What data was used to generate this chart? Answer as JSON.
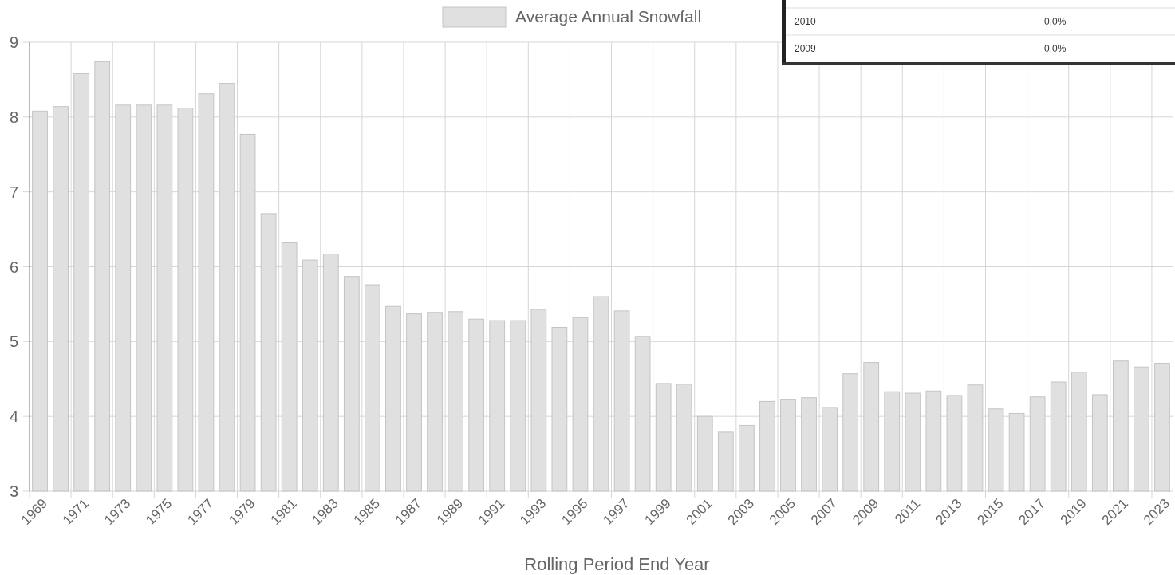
{
  "chart_data": {
    "type": "bar",
    "xlabel": "Rolling Period End Year",
    "categories": [
      "1969",
      null,
      "1971",
      null,
      "1973",
      null,
      "1975",
      null,
      "1977",
      null,
      "1979",
      null,
      "1981",
      null,
      "1983",
      null,
      "1985",
      null,
      "1987",
      null,
      "1989",
      null,
      "1991",
      null,
      "1993",
      null,
      "1995",
      null,
      "1997",
      null,
      "1999",
      null,
      "2001",
      null,
      "2003",
      null,
      "2005",
      null,
      "2007",
      null,
      "2009",
      null,
      "2011",
      null,
      "2013",
      null,
      "2015",
      null,
      "2017",
      null,
      "2019",
      null,
      "2021",
      null,
      "2023"
    ],
    "series": [
      {
        "name": "Average Annual Snowfall",
        "color": "#e0e0e0",
        "values": [
          8.08,
          8.14,
          8.58,
          8.74,
          8.16,
          8.16,
          8.16,
          8.12,
          8.31,
          8.45,
          7.77,
          6.71,
          6.32,
          6.09,
          6.17,
          5.87,
          5.76,
          5.47,
          5.37,
          5.39,
          5.4,
          5.3,
          5.28,
          5.28,
          5.43,
          5.19,
          5.32,
          5.6,
          5.41,
          5.07,
          4.44,
          4.43,
          4.0,
          3.79,
          3.88,
          4.2,
          4.23,
          4.25,
          4.12,
          4.57,
          4.72,
          4.33,
          4.31,
          4.34,
          4.28,
          4.42,
          4.1,
          4.04,
          4.26,
          4.46,
          4.59,
          4.29,
          4.74,
          4.66,
          4.71
        ]
      }
    ],
    "ylim": [
      3,
      9
    ],
    "yticks": [
      3,
      4,
      5,
      6,
      7,
      8,
      9
    ],
    "grid": true,
    "legend": "top",
    "annotations": [
      "2010",
      "0.0%",
      "2009",
      "0.0%"
    ]
  }
}
